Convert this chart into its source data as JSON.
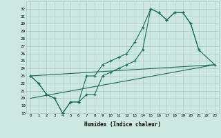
{
  "xlabel": "Humidex (Indice chaleur)",
  "background_color": "#cce8e0",
  "grid_color": "#aaccc4",
  "line_color": "#1a6b5a",
  "xlim": [
    -0.5,
    23.5
  ],
  "ylim": [
    18,
    33
  ],
  "xticks": [
    0,
    1,
    2,
    3,
    4,
    5,
    6,
    7,
    8,
    9,
    10,
    11,
    12,
    13,
    14,
    15,
    16,
    17,
    18,
    19,
    20,
    21,
    22,
    23
  ],
  "yticks": [
    18,
    19,
    20,
    21,
    22,
    23,
    24,
    25,
    26,
    27,
    28,
    29,
    30,
    31,
    32
  ],
  "line1_x": [
    0,
    1,
    2,
    3,
    4,
    5,
    6,
    7,
    8,
    9,
    10,
    11,
    12,
    13,
    14,
    15,
    16,
    17,
    18,
    19,
    20,
    21
  ],
  "line1_y": [
    23,
    22,
    20.5,
    20,
    18,
    19.5,
    19.5,
    20.5,
    20.5,
    23,
    23.5,
    24,
    24.5,
    25,
    26.5,
    32,
    31.5,
    30.5,
    31.5,
    31.5,
    30,
    26.5
  ],
  "line2_x": [
    0,
    1,
    2,
    3,
    4,
    5,
    6,
    7,
    8,
    9,
    10,
    11,
    12,
    13,
    14,
    15,
    16,
    17,
    18,
    19,
    20,
    21,
    23
  ],
  "line2_y": [
    23,
    22,
    20.5,
    20,
    18,
    19.5,
    19.5,
    23,
    23,
    24.5,
    25,
    25.5,
    26,
    27.5,
    29.5,
    32,
    31.5,
    30.5,
    31.5,
    31.5,
    30,
    26.5,
    24.5
  ],
  "trend1_x": [
    0,
    23
  ],
  "trend1_y": [
    23,
    24.5
  ],
  "trend2_x": [
    0,
    23
  ],
  "trend2_y": [
    20,
    24.5
  ]
}
